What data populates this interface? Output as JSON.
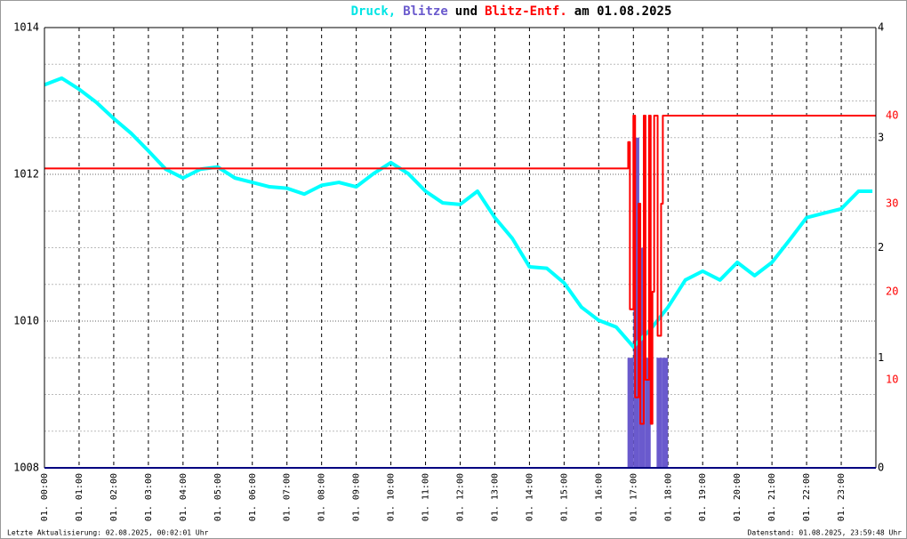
{
  "chart_data": {
    "type": "line",
    "title_parts": [
      {
        "text": "Druck,",
        "color": "#00e5e5"
      },
      {
        "text": "Blitze",
        "color": "#6a5acd"
      },
      {
        "text": "und",
        "color": "#000000"
      },
      {
        "text": "Blitz-Entf.",
        "color": "#ff0000"
      },
      {
        "text": "am 01.08.2025",
        "color": "#000000"
      }
    ],
    "footer_left": "Letzte Aktualisierung: 02.08.2025, 00:02:01 Uhr",
    "footer_right": "Datenstand: 01.08.2025, 23:59:48 Uhr",
    "xlim": [
      0,
      24
    ],
    "xticks": [
      {
        "value": 0,
        "label": "01. 00:00"
      },
      {
        "value": 1,
        "label": "01. 01:00"
      },
      {
        "value": 2,
        "label": "01. 02:00"
      },
      {
        "value": 3,
        "label": "01. 03:00"
      },
      {
        "value": 4,
        "label": "01. 04:00"
      },
      {
        "value": 5,
        "label": "01. 05:00"
      },
      {
        "value": 6,
        "label": "01. 06:00"
      },
      {
        "value": 7,
        "label": "01. 07:00"
      },
      {
        "value": 8,
        "label": "01. 08:00"
      },
      {
        "value": 9,
        "label": "01. 09:00"
      },
      {
        "value": 10,
        "label": "01. 10:00"
      },
      {
        "value": 11,
        "label": "01. 11:00"
      },
      {
        "value": 12,
        "label": "01. 12:00"
      },
      {
        "value": 13,
        "label": "01. 13:00"
      },
      {
        "value": 14,
        "label": "01. 14:00"
      },
      {
        "value": 15,
        "label": "01. 15:00"
      },
      {
        "value": 16,
        "label": "01. 16:00"
      },
      {
        "value": 17,
        "label": "01. 17:00"
      },
      {
        "value": 18,
        "label": "01. 18:00"
      },
      {
        "value": 19,
        "label": "01. 19:00"
      },
      {
        "value": 20,
        "label": "01. 20:00"
      },
      {
        "value": 21,
        "label": "01. 21:00"
      },
      {
        "value": 22,
        "label": "01. 22:00"
      },
      {
        "value": 23,
        "label": "01. 23:00"
      }
    ],
    "ylim": [
      1008,
      1014
    ],
    "yticks": [
      1008,
      1010,
      1012,
      1014
    ],
    "y_minor_grid": [
      1008.5,
      1009,
      1009.5,
      1010.5,
      1011,
      1011.5,
      1012.5,
      1013,
      1013.5
    ],
    "y2lim": [
      0,
      4
    ],
    "y2ticks": [
      0,
      1,
      2,
      3,
      4
    ],
    "y3lim": [
      0,
      50
    ],
    "y3ticks": [
      10,
      20,
      30,
      40
    ],
    "y3tick_color": "#ff0000",
    "grid": true,
    "series": [
      {
        "type": "line",
        "axis": "y",
        "color": "#00ffff",
        "x": [
          0,
          0.5,
          1,
          1.5,
          2,
          2.5,
          3,
          3.5,
          4,
          4.5,
          5,
          5.5,
          6,
          6.5,
          7,
          7.5,
          8,
          8.5,
          9,
          9.5,
          10,
          10.5,
          11,
          11.5,
          12,
          12.5,
          13,
          13.5,
          14,
          14.5,
          15,
          15.5,
          16,
          16.5,
          17,
          17.5,
          18,
          18.5,
          19,
          19.5,
          20,
          20.5,
          21,
          21.5,
          22,
          22.5,
          23,
          23.5,
          23.9
        ],
        "values": [
          1013.22,
          1013.31,
          1013.16,
          1012.98,
          1012.76,
          1012.56,
          1012.32,
          1012.07,
          1011.95,
          1012.07,
          1012.1,
          1011.95,
          1011.89,
          1011.83,
          1011.81,
          1011.73,
          1011.85,
          1011.89,
          1011.83,
          1012.01,
          1012.16,
          1012.01,
          1011.77,
          1011.61,
          1011.59,
          1011.77,
          1011.41,
          1011.13,
          1010.74,
          1010.72,
          1010.52,
          1010.19,
          1010.01,
          1009.92,
          1009.65,
          1009.89,
          1010.19,
          1010.56,
          1010.68,
          1010.56,
          1010.8,
          1010.62,
          1010.8,
          1011.1,
          1011.41,
          1011.47,
          1011.53,
          1011.77,
          1011.77
        ]
      },
      {
        "type": "bar",
        "axis": "y2",
        "color": "#6a5acd",
        "bins": [
          16.83,
          17.0,
          17.17,
          17.33,
          17.5,
          17.67,
          17.83,
          18.0
        ],
        "values": [
          1,
          3,
          2,
          1,
          0,
          1,
          1
        ]
      },
      {
        "type": "step",
        "axis": "y3",
        "color": "#ff0000",
        "x": [
          0,
          16.83,
          16.85,
          16.9,
          17.0,
          17.05,
          17.15,
          17.2,
          17.3,
          17.35,
          17.45,
          17.5,
          17.55,
          17.6,
          17.7,
          17.8,
          17.85,
          24
        ],
        "values": [
          34,
          34,
          37,
          18,
          40,
          8,
          30,
          5,
          40,
          10,
          40,
          5,
          20,
          40,
          15,
          30,
          40,
          40
        ]
      }
    ]
  }
}
